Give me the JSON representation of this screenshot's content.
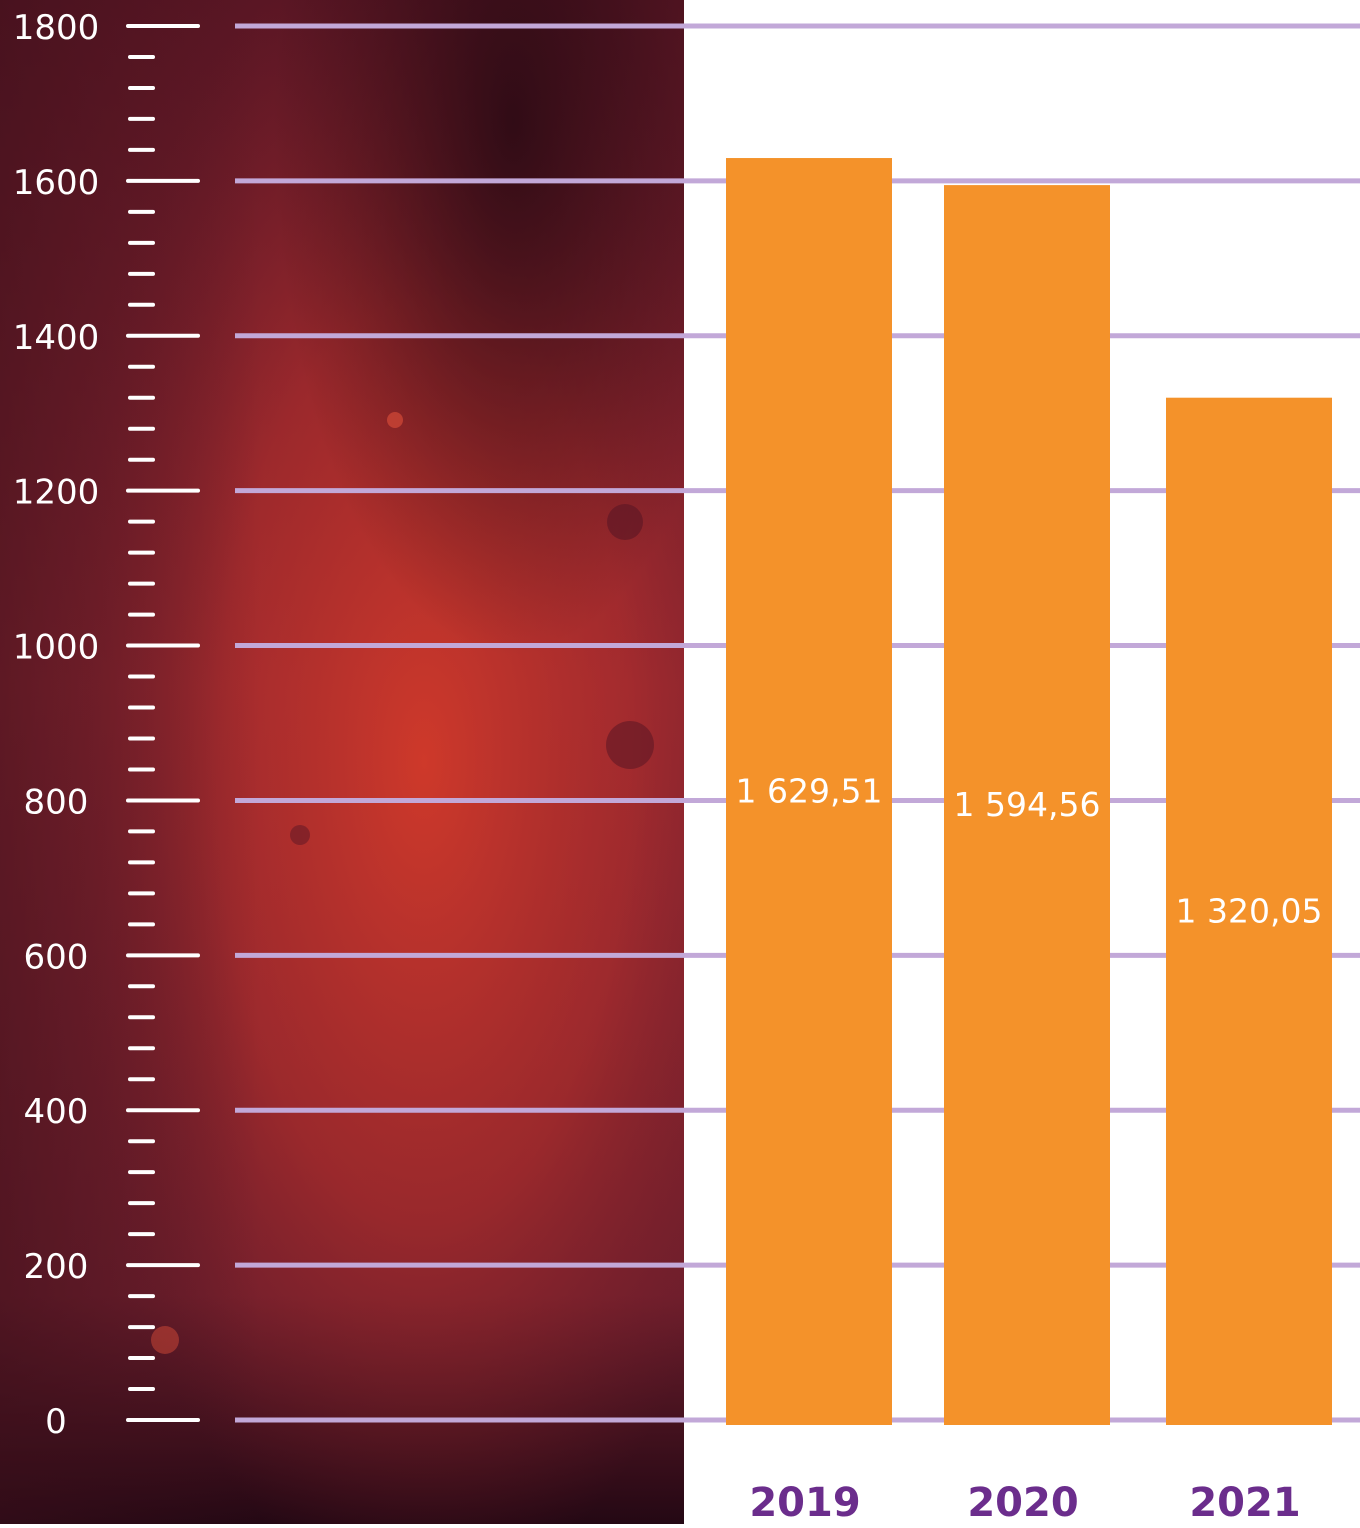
{
  "chart_data": {
    "type": "bar",
    "categories": [
      "2019",
      "2020",
      "2021"
    ],
    "values": [
      1629.51,
      1594.56,
      1320.05
    ],
    "value_labels": [
      "1 629,51",
      "1 594,56",
      "1 320,05"
    ],
    "y_ticks": [
      0,
      200,
      400,
      600,
      800,
      1000,
      1200,
      1400,
      1600,
      1800
    ],
    "y_tick_labels": [
      "0",
      "200",
      "400",
      "600",
      "800",
      "1000",
      "1200",
      "1400",
      "1600",
      "1800"
    ],
    "ylim": [
      0,
      1800
    ],
    "minor_ticks_per_major": 4,
    "grid": true,
    "colors": {
      "bar": "#F4922A",
      "gridline": "#C2A8D8",
      "category_label": "#6B2D8C",
      "value_label": "#FFFFFF",
      "scale_text": "#FFFFFF",
      "panel_dark": "#3A0F1A",
      "panel_mid": "#8A2530",
      "panel_bright": "#C8392C"
    }
  }
}
